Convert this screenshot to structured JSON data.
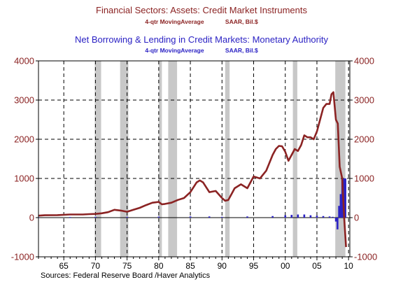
{
  "header": {
    "title1": "Financial Sectors: Assets: Credit Market Instruments",
    "subtitle1_a": "4-qtr MovingAverage",
    "subtitle1_b": "SAAR, Bil.$",
    "title2": "Net Borrowing & Lending in Credit Markets: Monetary Authority",
    "subtitle2_a": "4-qtr MovingAverage",
    "subtitle2_b": "SAAR, Bil.$"
  },
  "footer": {
    "source": "Sources:  Federal Reserve Board /Haver Analytics"
  },
  "chart_data": {
    "type": "line",
    "x_ticks": [
      1965,
      1970,
      1975,
      1980,
      1985,
      1990,
      1995,
      2000,
      2005,
      2010
    ],
    "x_tick_labels": [
      "65",
      "70",
      "75",
      "80",
      "85",
      "90",
      "95",
      "00",
      "05",
      "10"
    ],
    "xlim": [
      1961,
      2010.2
    ],
    "y_ticks": [
      -1000,
      0,
      1000,
      2000,
      3000,
      4000
    ],
    "y_tick_labels": [
      "-1000",
      "0",
      "1000",
      "2000",
      "3000",
      "4000"
    ],
    "ylim": [
      -1000,
      4000
    ],
    "grid": true,
    "recessions": [
      [
        1969.9,
        1970.9
      ],
      [
        1973.9,
        1975.2
      ],
      [
        1980.0,
        1980.5
      ],
      [
        1981.5,
        1982.9
      ],
      [
        1990.5,
        1991.2
      ],
      [
        2001.2,
        2001.9
      ],
      [
        2007.9,
        2009.5
      ]
    ],
    "colors": {
      "assets": "#8b2323",
      "monetary": "#2b22c4",
      "recession": "#c8c8c8"
    },
    "series": [
      {
        "name": "Financial Sectors: Assets: Credit Market Instruments",
        "style": "line",
        "x": [
          1961,
          1962,
          1964,
          1966,
          1968,
          1969,
          1970,
          1971,
          1972,
          1973,
          1974,
          1975,
          1976,
          1977,
          1978,
          1979,
          1980,
          1980.5,
          1981,
          1982,
          1983,
          1984,
          1985,
          1986,
          1986.5,
          1987,
          1988,
          1989,
          1990,
          1990.5,
          1991,
          1991.5,
          1992,
          1993,
          1994,
          1995,
          1996,
          1997,
          1998,
          1998.5,
          1999,
          1999.5,
          2000,
          2000.5,
          2001,
          2001.5,
          2002,
          2002.5,
          2003,
          2003.5,
          2004,
          2004.5,
          2005,
          2005.5,
          2006,
          2006.5,
          2007,
          2007.3,
          2007.6,
          2008,
          2008.3,
          2008.6,
          2009,
          2009.3,
          2009.6
        ],
        "y": [
          50,
          60,
          65,
          80,
          80,
          90,
          95,
          110,
          140,
          200,
          180,
          150,
          200,
          250,
          320,
          380,
          400,
          340,
          350,
          380,
          450,
          500,
          650,
          900,
          950,
          900,
          650,
          680,
          500,
          430,
          450,
          600,
          750,
          850,
          750,
          1050,
          1000,
          1200,
          1600,
          1750,
          1830,
          1820,
          1680,
          1450,
          1600,
          1750,
          1700,
          1850,
          2100,
          2050,
          2050,
          2000,
          2200,
          2500,
          2800,
          2900,
          2900,
          3150,
          3200,
          2500,
          2400,
          1300,
          1000,
          0,
          -750
        ]
      },
      {
        "name": "Net Borrowing & Lending in Credit Markets: Monetary Authority",
        "style": "bar",
        "x": [
          1961,
          1966,
          1970,
          1975,
          1980,
          1985,
          1988,
          1990,
          1994,
          1998,
          2000,
          2001,
          2002,
          2003,
          2004,
          2005,
          2006,
          2007,
          2007.5,
          2008,
          2008.25,
          2008.5,
          2008.75,
          2009,
          2009.25,
          2009.5
        ],
        "y": [
          10,
          15,
          20,
          20,
          25,
          30,
          30,
          20,
          30,
          40,
          60,
          70,
          80,
          80,
          60,
          50,
          40,
          30,
          20,
          -100,
          -300,
          300,
          600,
          1000,
          1000,
          1000
        ]
      }
    ]
  }
}
